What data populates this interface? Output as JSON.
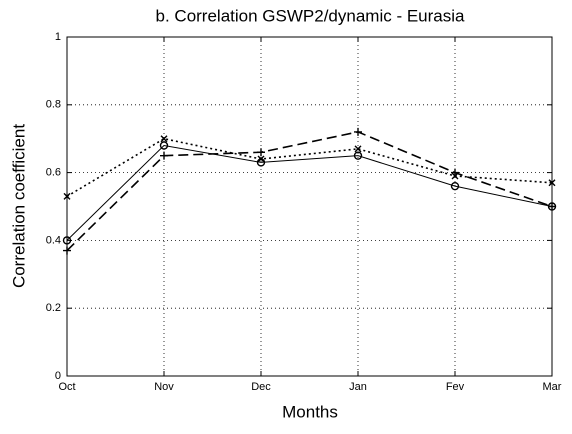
{
  "chart_data": {
    "type": "line",
    "title": "b. Correlation GSWP2/dynamic - Eurasia",
    "x_label": "Months",
    "y_label": "Correlation coefficient",
    "categories": [
      "Oct",
      "Nov",
      "Dec",
      "Jan",
      "Fev",
      "Mar"
    ],
    "series": [
      {
        "color": "#000000",
        "dash": "solid",
        "marker": "circle",
        "values": [
          0.4,
          0.68,
          0.63,
          0.65,
          0.56,
          0.5
        ]
      },
      {
        "color": "#000000",
        "dash": "dashed",
        "marker": "plus",
        "values": [
          0.37,
          0.65,
          0.66,
          0.72,
          0.6,
          0.5
        ]
      },
      {
        "color": "#000000",
        "dash": "dotted",
        "marker": "x",
        "values": [
          0.53,
          0.7,
          0.64,
          0.67,
          0.59,
          0.57
        ]
      }
    ],
    "ylim": [
      0,
      1
    ],
    "yticks": [
      0,
      0.2,
      0.4,
      0.6,
      0.8,
      1
    ],
    "grid": true
  }
}
